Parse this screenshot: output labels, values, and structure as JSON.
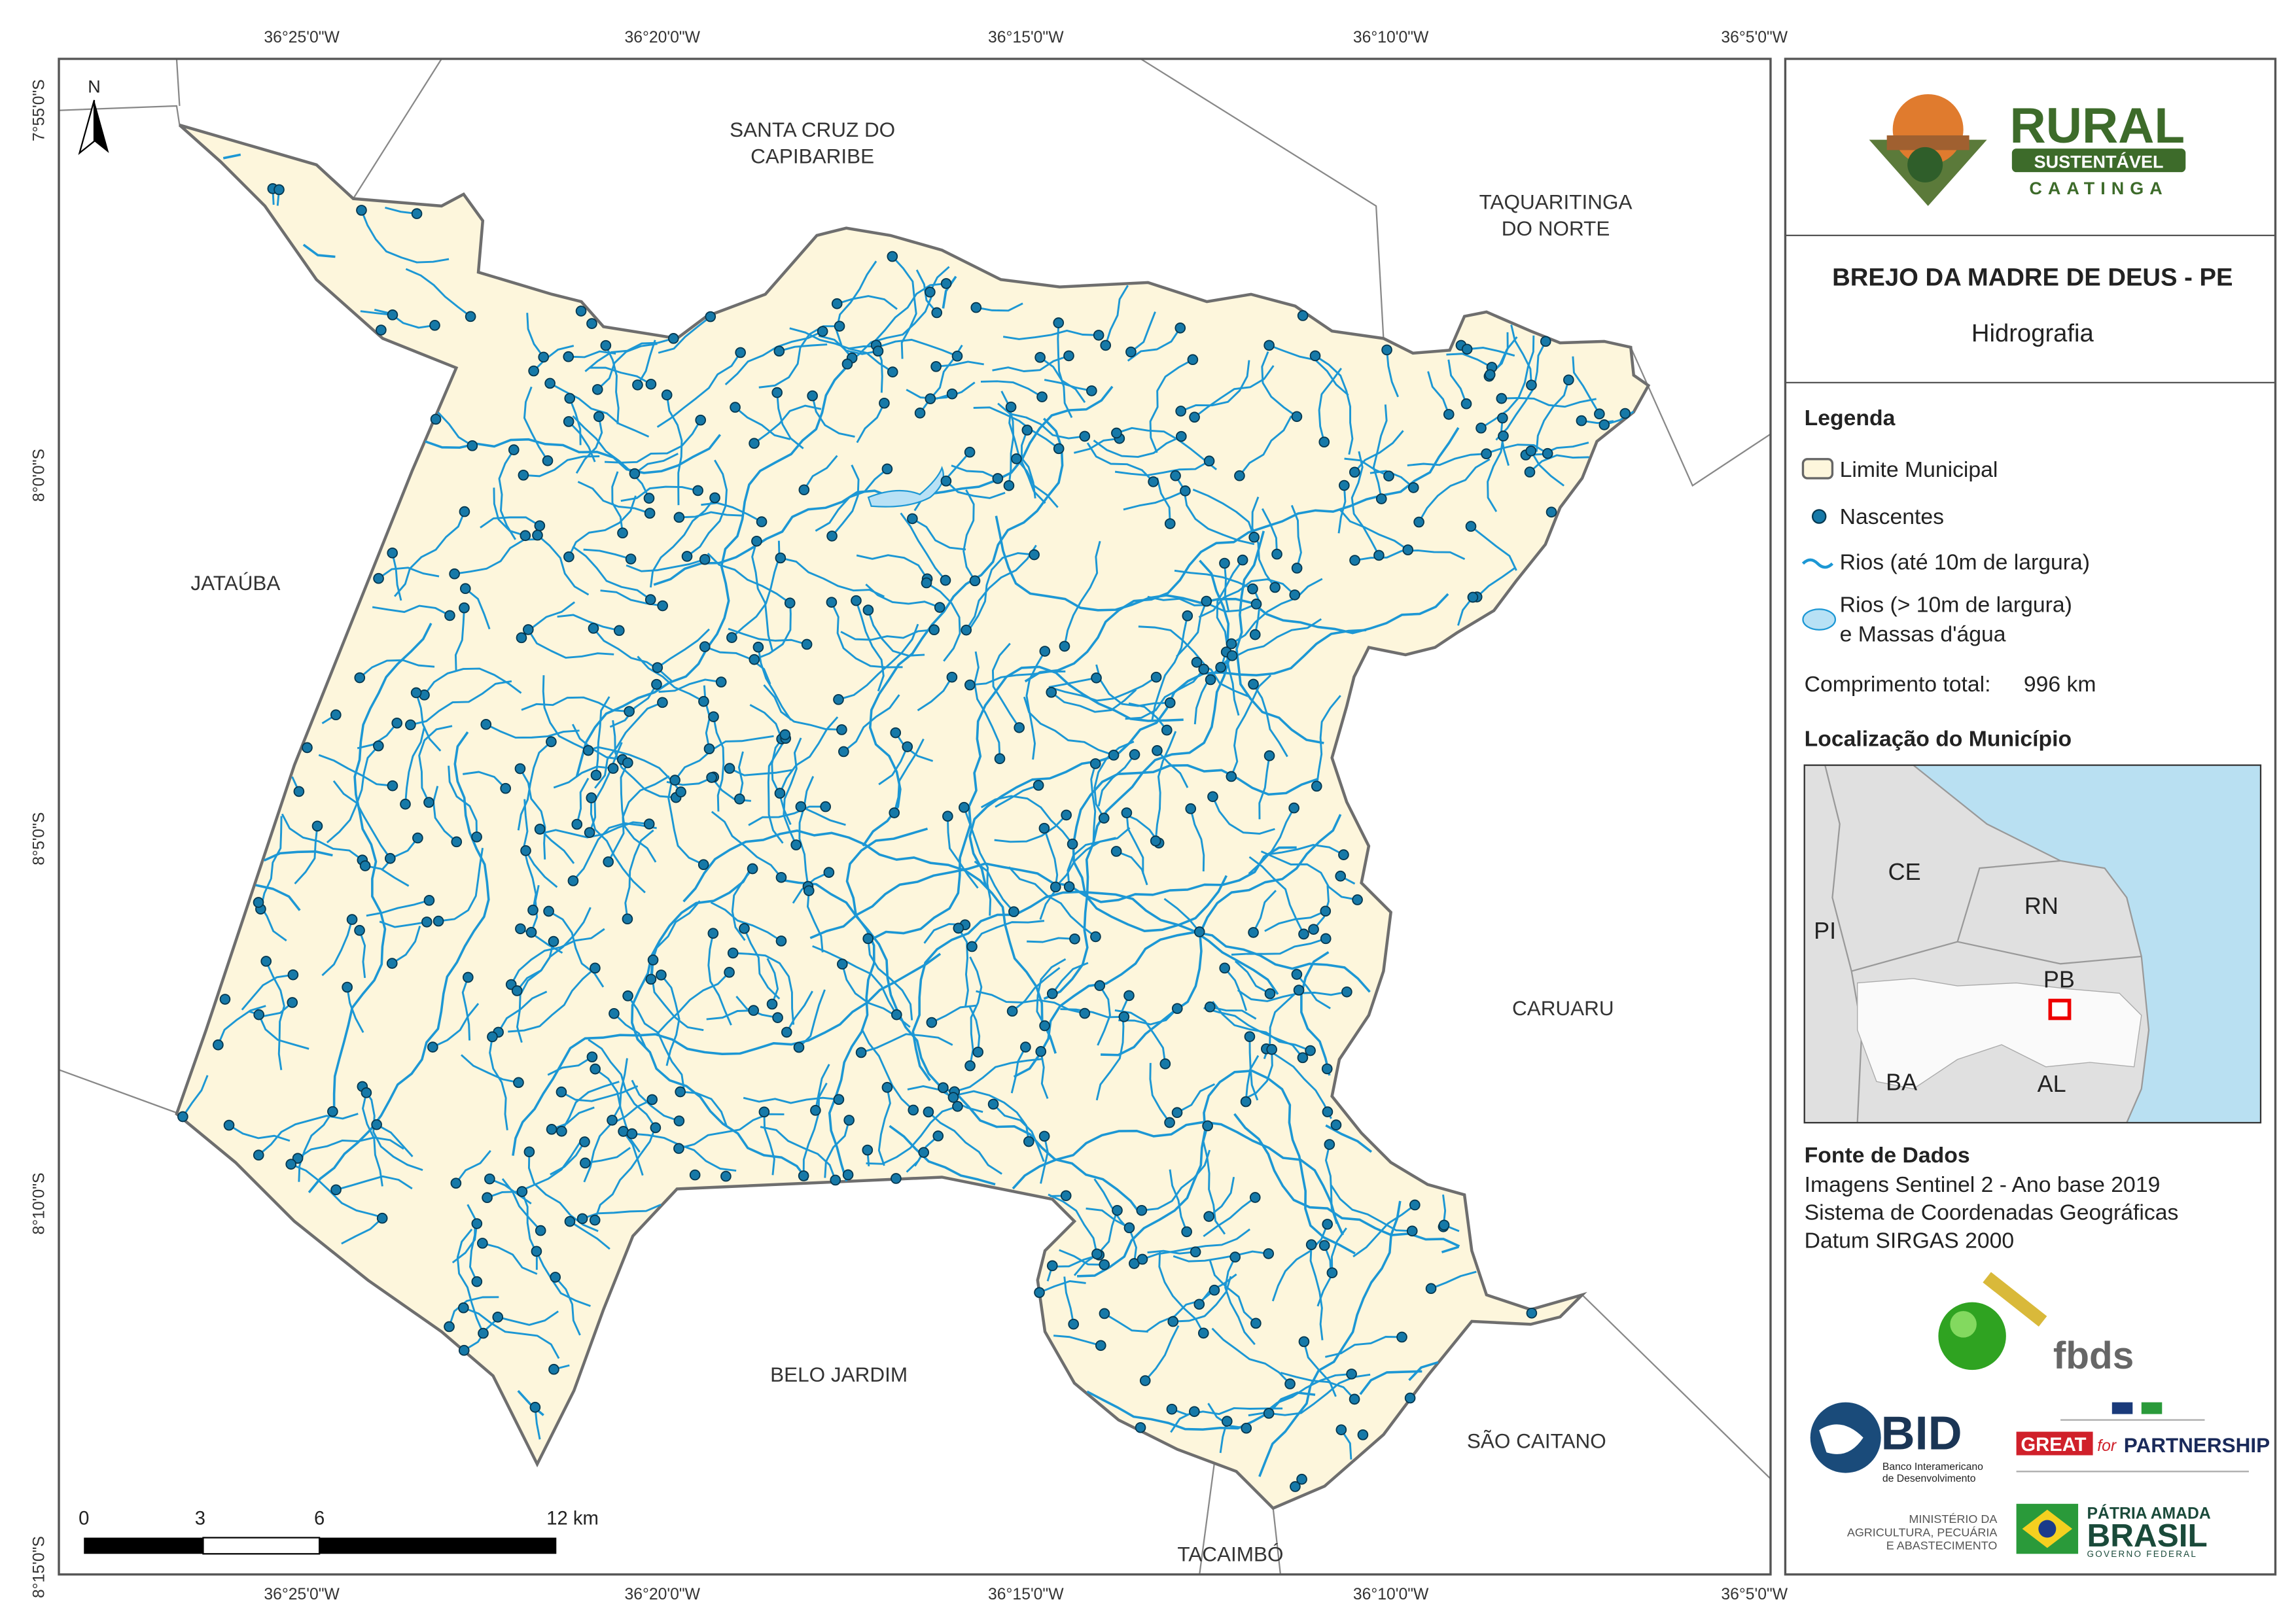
{
  "map": {
    "top_ticks": [
      "36°25'0\"W",
      "36°20'0\"W",
      "36°15'0\"W",
      "36°10'0\"W",
      "36°5'0\"W"
    ],
    "bottom_ticks": [
      "36°25'0\"W",
      "36°20'0\"W",
      "36°15'0\"W",
      "36°10'0\"W",
      "36°5'0\"W"
    ],
    "left_ticks": [
      "7°55'0\"S",
      "8°0'0\"S",
      "8°5'0\"S",
      "8°10'0\"S",
      "8°15'0\"S"
    ],
    "north": "N",
    "neighbors": [
      [
        "SANTA CRUZ DO",
        "CAPIBARIBE"
      ],
      [
        "TAQUARITINGA",
        "DO NORTE"
      ],
      [
        "JATAÚBA"
      ],
      [
        "CARUARU"
      ],
      [
        "BELO JARDIM"
      ],
      [
        "SÃO CAITANO"
      ],
      [
        "TACAIMBÓ"
      ]
    ],
    "scale_labels": [
      "0",
      "3",
      "6",
      "12 km"
    ]
  },
  "panel": {
    "logo": {
      "title": "RURAL",
      "subtitle": "SUSTENTÁVEL",
      "region": "CAATINGA"
    },
    "title": "BREJO DA MADRE DE DEUS - PE",
    "subtitle": "Hidrografia",
    "legend": {
      "heading": "Legenda",
      "items": [
        "Limite Municipal",
        "Nascentes",
        "Rios (até 10m de largura)",
        "Rios (> 10m de largura)",
        "e Massas d'água"
      ],
      "total_label": "Comprimento total:",
      "total": "996 km"
    },
    "location": {
      "heading": "Localização do Município",
      "states": [
        "CE",
        "RN",
        "PI",
        "PB",
        "BA",
        "AL"
      ]
    },
    "sources": {
      "heading": "Fonte de Dados",
      "lines": [
        "Imagens Sentinel 2 - Ano base 2019",
        "Sistema de Coordenadas Geográficas",
        "Datum SIRGAS 2000"
      ]
    },
    "partners": {
      "fbds": "fbds",
      "bid": "BID",
      "bid_lines": [
        "Banco Interamericano",
        "de Desenvolvimento"
      ],
      "great": "GREAT",
      "for": "for",
      "partnership": "PARTNERSHIP",
      "ministry": [
        "MINISTÉRIO DA",
        "AGRICULTURA, PECUÁRIA",
        "E ABASTECIMENTO"
      ],
      "patria": "PÁTRIA AMADA",
      "brasil": "BRASIL",
      "gov": "GOVERNO FEDERAL"
    }
  }
}
